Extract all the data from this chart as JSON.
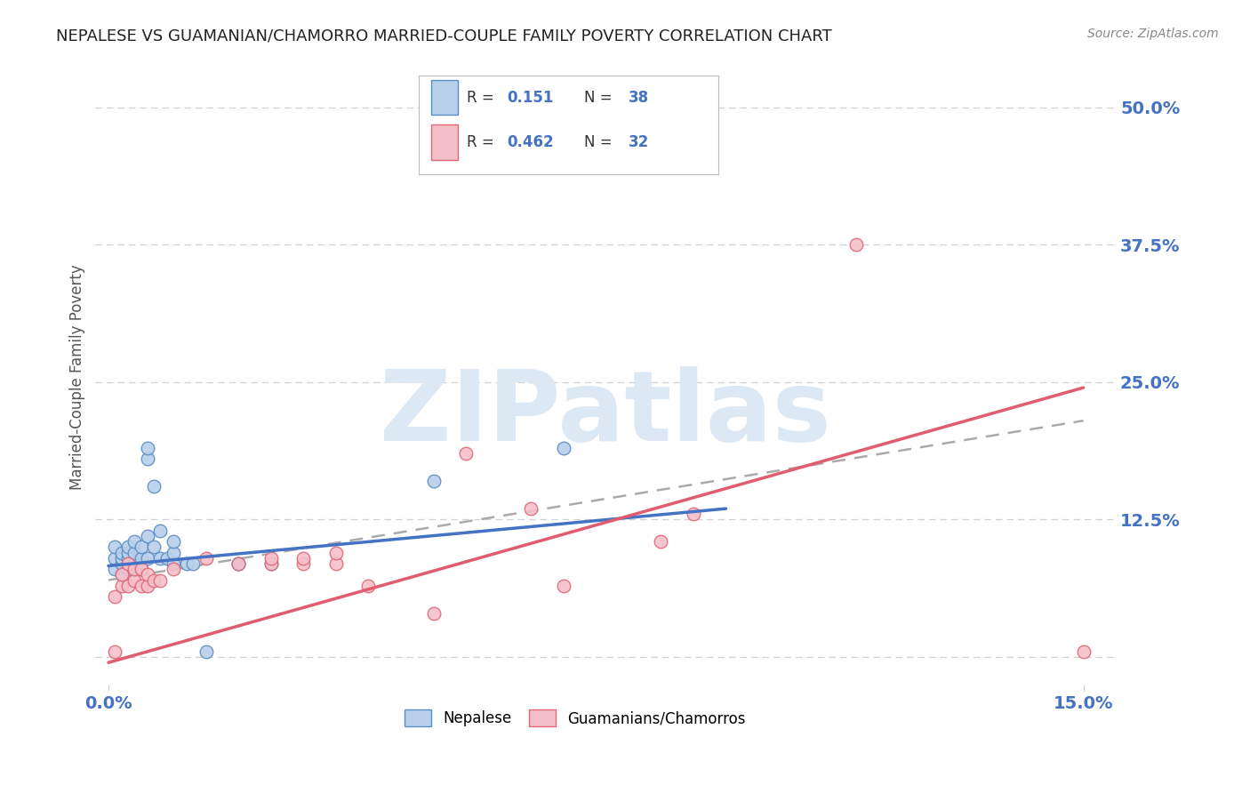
{
  "title": "NEPALESE VS GUAMANIAN/CHAMORRO MARRIED-COUPLE FAMILY POVERTY CORRELATION CHART",
  "source": "Source: ZipAtlas.com",
  "xlabel": "",
  "ylabel": "Married-Couple Family Poverty",
  "xlim": [
    -0.002,
    0.155
  ],
  "ylim": [
    -0.025,
    0.535
  ],
  "yticks_right": [
    0.0,
    0.125,
    0.25,
    0.375,
    0.5
  ],
  "ytick_right_labels": [
    "",
    "12.5%",
    "25.0%",
    "37.5%",
    "50.0%"
  ],
  "background_color": "#ffffff",
  "plot_bg_color": "#ffffff",
  "grid_color": "#d0d0d0",
  "watermark_text": "ZIPatlas",
  "nepalese_color": "#b8d0ea",
  "guamanian_color": "#f5bfc8",
  "nepalese_edge_color": "#5b8ec4",
  "guamanian_edge_color": "#e06878",
  "nepalese_line_color": "#4472c4",
  "guamanian_line_color": "#e05c6e",
  "overall_line_color": "#aaaaaa",
  "legend_label_nepalese": "Nepalese",
  "legend_label_guamanian": "Guamanians/Chamorros",
  "nepalese_x": [
    0.001,
    0.001,
    0.001,
    0.002,
    0.002,
    0.002,
    0.002,
    0.003,
    0.003,
    0.003,
    0.003,
    0.003,
    0.004,
    0.004,
    0.004,
    0.005,
    0.005,
    0.005,
    0.006,
    0.006,
    0.006,
    0.006,
    0.007,
    0.007,
    0.008,
    0.008,
    0.009,
    0.01,
    0.01,
    0.01,
    0.012,
    0.013,
    0.015,
    0.02,
    0.02,
    0.025,
    0.05,
    0.07
  ],
  "nepalese_y": [
    0.08,
    0.09,
    0.1,
    0.075,
    0.085,
    0.09,
    0.095,
    0.08,
    0.085,
    0.09,
    0.095,
    0.1,
    0.085,
    0.095,
    0.105,
    0.08,
    0.09,
    0.1,
    0.09,
    0.11,
    0.18,
    0.19,
    0.1,
    0.155,
    0.09,
    0.115,
    0.09,
    0.085,
    0.095,
    0.105,
    0.085,
    0.085,
    0.005,
    0.085,
    0.085,
    0.085,
    0.16,
    0.19
  ],
  "guamanian_x": [
    0.001,
    0.001,
    0.002,
    0.002,
    0.003,
    0.003,
    0.004,
    0.004,
    0.005,
    0.005,
    0.006,
    0.006,
    0.007,
    0.008,
    0.01,
    0.015,
    0.02,
    0.025,
    0.025,
    0.03,
    0.03,
    0.035,
    0.035,
    0.04,
    0.05,
    0.055,
    0.065,
    0.07,
    0.085,
    0.09,
    0.115,
    0.15
  ],
  "guamanian_y": [
    0.005,
    0.055,
    0.065,
    0.075,
    0.065,
    0.085,
    0.07,
    0.08,
    0.065,
    0.08,
    0.065,
    0.075,
    0.07,
    0.07,
    0.08,
    0.09,
    0.085,
    0.085,
    0.09,
    0.085,
    0.09,
    0.085,
    0.095,
    0.065,
    0.04,
    0.185,
    0.135,
    0.065,
    0.105,
    0.13,
    0.375,
    0.005
  ],
  "nepalese_line_x": [
    0.0,
    0.095
  ],
  "nepalese_line_y": [
    0.083,
    0.135
  ],
  "guamanian_line_x": [
    0.0,
    0.15
  ],
  "guamanian_line_y": [
    -0.005,
    0.245
  ],
  "overall_line_x": [
    0.0,
    0.15
  ],
  "overall_line_y": [
    0.07,
    0.215
  ],
  "title_color": "#222222",
  "axis_label_color": "#555555",
  "tick_color": "#4472c4",
  "R_color": "#4472c4",
  "N_color": "#4472c4"
}
